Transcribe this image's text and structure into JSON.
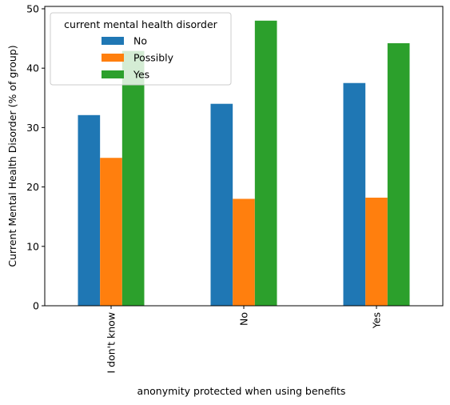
{
  "chart_data": {
    "type": "bar",
    "xlabel": "anonymity protected when using benefits",
    "ylabel": "Current Mental Health Disorder (% of group)",
    "categories": [
      "I don't know",
      "No",
      "Yes"
    ],
    "series": [
      {
        "name": "No",
        "values": [
          32.1,
          34.0,
          37.5
        ],
        "color": "#1f77b4"
      },
      {
        "name": "Possibly",
        "values": [
          24.9,
          18.0,
          18.2
        ],
        "color": "#ff7f0e"
      },
      {
        "name": "Yes",
        "values": [
          42.9,
          48.0,
          44.2
        ],
        "color": "#2ca02c"
      }
    ],
    "ylim": [
      0,
      50.4
    ],
    "yticks": [
      0,
      10,
      20,
      30,
      40,
      50
    ],
    "grid": false,
    "legend": {
      "title": "current mental health disorder",
      "placement": "upper-left"
    }
  }
}
